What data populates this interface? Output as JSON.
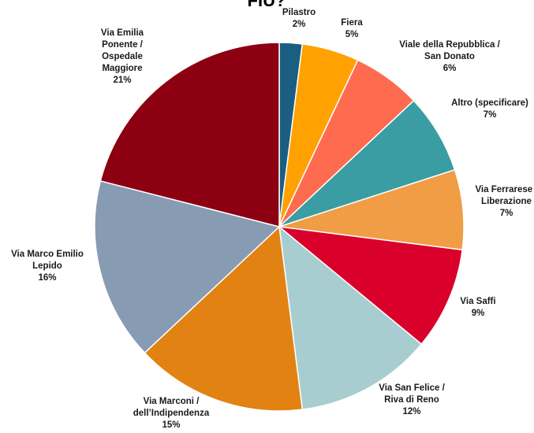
{
  "chart_data": {
    "type": "pie",
    "title": "FIU?",
    "slices": [
      {
        "label": "Pilastro",
        "lines": [
          "Pilastro"
        ],
        "value": 2,
        "value_label": "2%",
        "color": "#1A5E82"
      },
      {
        "label": "Fiera",
        "lines": [
          "Fiera"
        ],
        "value": 5,
        "value_label": "5%",
        "color": "#FFA100"
      },
      {
        "label": "Viale della Repubblica / San Donato",
        "lines": [
          "Viale della Repubblica /",
          "San Donato"
        ],
        "value": 6,
        "value_label": "6%",
        "color": "#FF6B4E"
      },
      {
        "label": "Altro (specificare)",
        "lines": [
          "Altro (specificare)"
        ],
        "value": 7,
        "value_label": "7%",
        "color": "#3A9DA3"
      },
      {
        "label": "Via Ferrarese / Liberazione",
        "lines": [
          "Via Ferrarese /",
          "Liberazione"
        ],
        "value": 7,
        "value_label": "7%",
        "color": "#F09D45"
      },
      {
        "label": "Via Saffi",
        "lines": [
          "Via Saffi"
        ],
        "value": 9,
        "value_label": "9%",
        "color": "#D9002B"
      },
      {
        "label": "Via San Felice / Riva di Reno",
        "lines": [
          "Via San Felice /",
          "Riva di Reno"
        ],
        "value": 12,
        "value_label": "12%",
        "color": "#A8CDD0"
      },
      {
        "label": "Via Marconi / dell’Indipendenza",
        "lines": [
          "Via Marconi /",
          "dell’Indipendenza"
        ],
        "value": 15,
        "value_label": "15%",
        "color": "#E18213"
      },
      {
        "label": "Via Marco Emilio Lepido",
        "lines": [
          "Via Marco Emilio",
          "Lepido"
        ],
        "value": 16,
        "value_label": "16%",
        "color": "#879CB3"
      },
      {
        "label": "Via Emilia Ponente / Ospedale Maggiore",
        "lines": [
          "Via Emilia",
          "Ponente /",
          "Ospedale",
          "Maggiore"
        ],
        "value": 21,
        "value_label": "21%",
        "color": "#8C0012"
      }
    ]
  }
}
